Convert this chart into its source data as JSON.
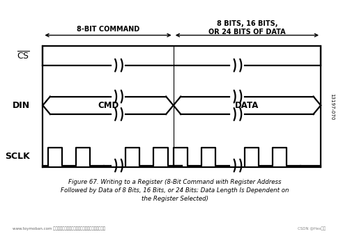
{
  "title_line1": "Figure 67. Writing to a Register (8-Bit Command with Register Address",
  "title_line2": "Followed by Data of 8 Bits, 16 Bits, or 24 Bits; Data Length Is Dependent on",
  "title_line3": "the Register Selected)",
  "label_cmd": "8-BIT COMMAND",
  "label_data_l1": "8 BITS, 16 BITS,",
  "label_data_l2": "OR 24 BITS OF DATA",
  "sig_cs": "CS",
  "sig_din": "DIN",
  "sig_sclk": "SCLK",
  "fig_id": "13197-070",
  "watermark1": "www.toymoban.com 网络图片仅供展示，非存储，如有侵权请联系删除。",
  "watermark2": "CSDN @Hex图雪",
  "bg_color": "#ffffff",
  "signal_color": "#000000",
  "lw": 1.6
}
